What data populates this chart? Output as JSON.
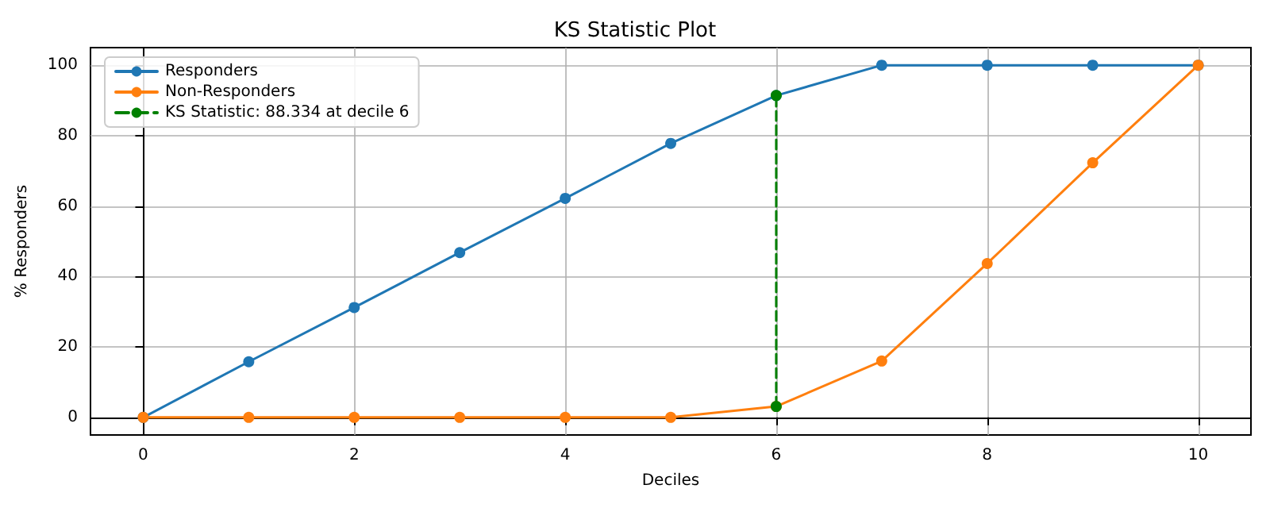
{
  "chart_data": {
    "type": "line",
    "title": "KS Statistic Plot",
    "xlabel": "Deciles",
    "ylabel": "% Responders",
    "x": [
      0,
      1,
      2,
      3,
      4,
      5,
      6,
      7,
      8,
      9,
      10
    ],
    "series": [
      {
        "name": "Responders",
        "color": "#1f77b4",
        "values": [
          0,
          15.8,
          31.2,
          46.8,
          62.2,
          77.8,
          91.4,
          100,
          100,
          100,
          100
        ]
      },
      {
        "name": "Non-Responders",
        "color": "#ff7f0e",
        "values": [
          0,
          0,
          0,
          0,
          0,
          0,
          3.1,
          16,
          43.7,
          72.3,
          100
        ]
      },
      {
        "name": "KS Statistic: 88.334 at decile 6",
        "color": "#008000",
        "type": "line",
        "line_style": "dashed",
        "x": [
          6,
          6
        ],
        "values": [
          3.1,
          91.4
        ]
      }
    ],
    "xlim": [
      -0.5,
      10.5
    ],
    "xticks": [
      0,
      2,
      4,
      6,
      8,
      10
    ],
    "ylim": [
      -5,
      105
    ],
    "yticks": [
      0,
      20,
      40,
      60,
      80,
      100
    ],
    "grid": true,
    "legend": "top left",
    "marker": "circle",
    "line_style": "solid"
  }
}
